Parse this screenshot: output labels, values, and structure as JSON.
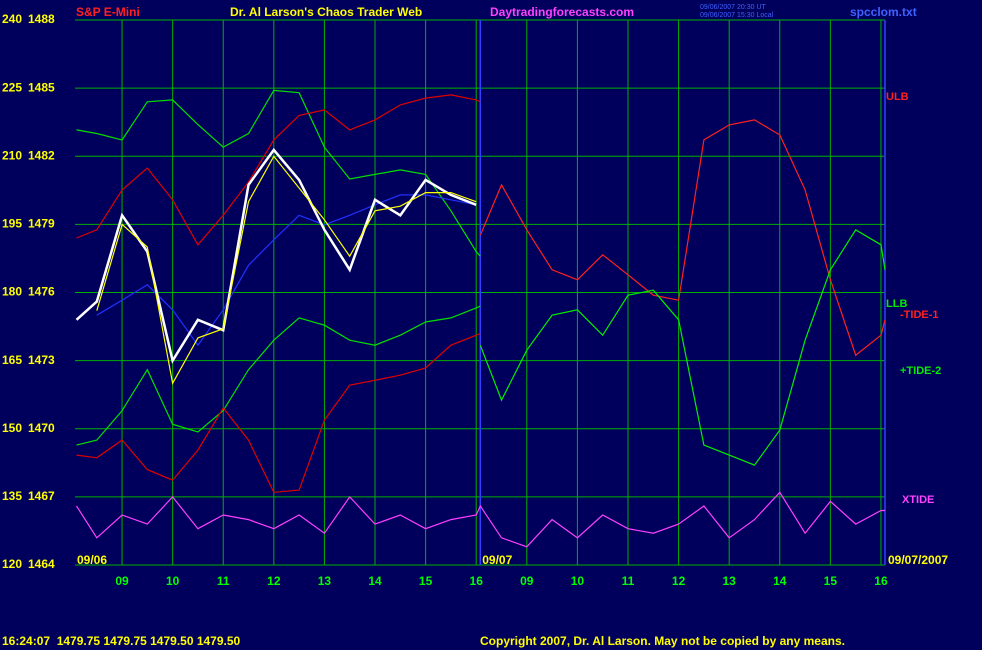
{
  "chart_data": {
    "type": "line",
    "symbol": "S&P E-Mini",
    "title": "Dr. Al Larson's Chaos Trader Web",
    "site": "Daytradingforecasts.com",
    "timestamps": [
      "09/06/2007 20:30 UT",
      "09/06/2007 15:30 Local"
    ],
    "file": "spcclom.txt",
    "quote": "16:24:07  1479.75 1479.75 1479.50 1479.50",
    "copyright": "Copyright 2007, Dr. Al Larson. May not be copied by any means.",
    "date_labels": [
      "09/06",
      "09/07",
      "09/07/2007"
    ],
    "annotations": [
      {
        "text": "ULB",
        "color": "#ff2020"
      },
      {
        "text": "LLB",
        "color": "#00ee00"
      }
    ],
    "divider": 16.08,
    "xlim": [
      8.07,
      24.08
    ],
    "xticks": [
      {
        "value": 9,
        "label": "09"
      },
      10,
      11,
      12,
      13,
      14,
      15,
      16,
      {
        "value": 17,
        "label": "09"
      },
      {
        "value": 18,
        "label": "10"
      },
      {
        "value": 19,
        "label": "11"
      },
      {
        "value": 20,
        "label": "12"
      },
      {
        "value": 21,
        "label": "13"
      },
      {
        "value": 22,
        "label": "14"
      },
      {
        "value": 23,
        "label": "15"
      },
      {
        "value": 24,
        "label": "16"
      }
    ],
    "ylim": [
      120,
      240
    ],
    "yticks": [
      120,
      135,
      150,
      165,
      180,
      195,
      210,
      225,
      240
    ],
    "y2lim": [
      1464,
      1488
    ],
    "y2ticks": [
      1464,
      1467,
      1470,
      1473,
      1476,
      1479,
      1482,
      1485,
      1488
    ],
    "grid": true,
    "x": [
      8.1,
      8.5,
      9,
      9.5,
      10,
      10.5,
      11,
      11.5,
      12,
      12.5,
      13,
      13.5,
      14,
      14.5,
      15,
      15.5,
      16,
      16.08,
      16.5,
      17,
      17.5,
      18,
      18.5,
      19,
      19.5,
      20,
      20.5,
      21,
      21.5,
      22,
      22.5,
      23,
      23.5,
      24,
      24.08
    ],
    "series": [
      {
        "color": "#00e000",
        "values": [
          215.8,
          215,
          213.6,
          222,
          222.4,
          217,
          212,
          215,
          224.5,
          224,
          212,
          205,
          206,
          207,
          206,
          198,
          189,
          188,
          null,
          null,
          null,
          null,
          null,
          null,
          null,
          null,
          null,
          null,
          null,
          null,
          null,
          null,
          null,
          null,
          null
        ]
      },
      {
        "color": "#00e000",
        "values": [
          146.4,
          147.5,
          154,
          163,
          151,
          149.3,
          154,
          163,
          169.5,
          174.4,
          172.8,
          169.5,
          168.4,
          170.6,
          173.5,
          174.4,
          176.6,
          177,
          null,
          null,
          null,
          null,
          null,
          null,
          null,
          null,
          null,
          null,
          null,
          null,
          null,
          null,
          null,
          null,
          null
        ]
      },
      {
        "color": "#e00000",
        "values": [
          192,
          193.8,
          202.6,
          207.4,
          200.4,
          190.5,
          197,
          204.3,
          213.6,
          219,
          220.2,
          215.8,
          218,
          221.3,
          222.8,
          223.5,
          222.4,
          222,
          null,
          null,
          null,
          null,
          null,
          null,
          null,
          null,
          null,
          null,
          null,
          null,
          null,
          null,
          null,
          null,
          null
        ]
      },
      {
        "color": "#e00000",
        "values": [
          144.2,
          143.6,
          147.5,
          141,
          138.7,
          145.3,
          154.6,
          147.5,
          136,
          136.5,
          151.9,
          159.6,
          160.7,
          161.8,
          163.4,
          168.4,
          170.6,
          171,
          null,
          null,
          null,
          null,
          null,
          null,
          null,
          null,
          null,
          null,
          null,
          null,
          null,
          null,
          null,
          null,
          null
        ]
      },
      {
        "color": "#2030ff",
        "values": [
          null,
          175,
          178.3,
          181.7,
          176.2,
          168.4,
          176.2,
          186,
          191.6,
          197,
          194.9,
          197,
          199.3,
          201.5,
          201.5,
          200.4,
          199.3,
          null,
          null,
          null,
          null,
          null,
          null,
          null,
          null,
          null,
          null,
          null,
          null,
          null,
          null,
          null,
          null,
          null,
          null
        ]
      },
      {
        "color": "#ffffff",
        "values": [
          174,
          178,
          197,
          189,
          165,
          174,
          171.7,
          203.7,
          211.4,
          204.8,
          193.8,
          185,
          200.4,
          197,
          204.8,
          201.5,
          199.3,
          null,
          null,
          null,
          null,
          null,
          null,
          null,
          null,
          null,
          null,
          null,
          null,
          null,
          null,
          null,
          null,
          null,
          null
        ]
      },
      {
        "color": "#ffff00",
        "values": [
          null,
          176,
          195,
          190,
          160,
          170,
          172,
          200,
          210,
          203,
          196,
          188,
          198,
          199,
          202,
          202,
          200,
          null,
          null,
          null,
          null,
          null,
          null,
          null,
          null,
          null,
          null,
          null,
          null,
          null,
          null,
          null,
          null,
          null,
          null
        ]
      },
      {
        "name": "-TIDE-1",
        "color": "#ff2020",
        "values": [
          null,
          null,
          null,
          null,
          null,
          null,
          null,
          null,
          null,
          null,
          null,
          null,
          null,
          null,
          null,
          null,
          null,
          192.6,
          203.7,
          193.8,
          185,
          182.8,
          188.3,
          183.9,
          179.4,
          178.3,
          213.6,
          216.9,
          218,
          214.7,
          202.6,
          182.8,
          166.2,
          170.6,
          174
        ]
      },
      {
        "name": "+TIDE-2",
        "color": "#00ee00",
        "values": [
          null,
          null,
          null,
          null,
          null,
          null,
          null,
          null,
          null,
          null,
          null,
          null,
          null,
          null,
          null,
          null,
          null,
          168.4,
          156.3,
          167.3,
          175,
          176.2,
          170.6,
          179.4,
          180.5,
          174,
          146.4,
          144.2,
          142,
          149.7,
          169.5,
          185,
          193.8,
          190.5,
          185
        ]
      },
      {
        "name": "XTIDE",
        "color": "#ff40ff",
        "values": [
          133,
          126,
          131,
          129,
          135,
          128,
          131,
          130,
          128,
          131,
          127,
          135,
          129,
          131,
          128,
          130,
          131,
          133,
          126,
          124,
          130,
          126,
          131,
          128,
          127,
          129,
          133,
          126,
          130,
          136,
          127,
          134,
          129,
          132,
          132
        ]
      }
    ]
  }
}
